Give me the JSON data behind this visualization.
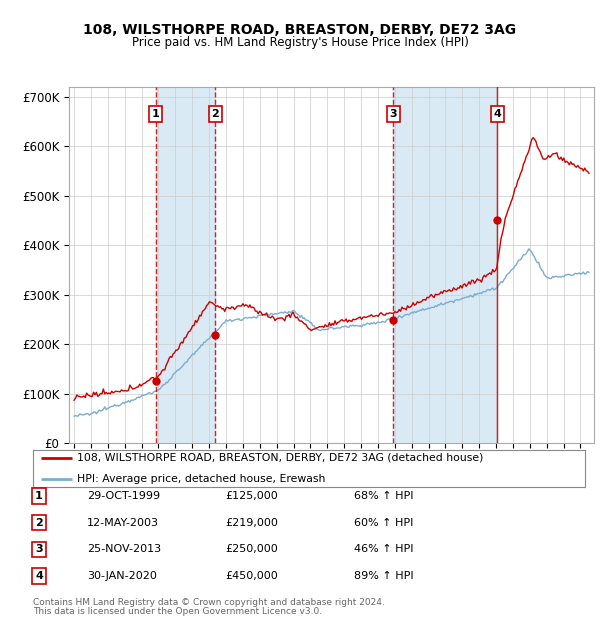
{
  "title1": "108, WILSTHORPE ROAD, BREASTON, DERBY, DE72 3AG",
  "title2": "Price paid vs. HM Land Registry's House Price Index (HPI)",
  "ylim": [
    0,
    720000
  ],
  "yticks": [
    0,
    100000,
    200000,
    300000,
    400000,
    500000,
    600000,
    700000
  ],
  "ytick_labels": [
    "£0",
    "£100K",
    "£200K",
    "£300K",
    "£400K",
    "£500K",
    "£600K",
    "£700K"
  ],
  "sale_dates": [
    1999.83,
    2003.36,
    2013.9,
    2020.08
  ],
  "sale_prices": [
    125000,
    219000,
    250000,
    450000
  ],
  "sale_numbers": [
    "1",
    "2",
    "3",
    "4"
  ],
  "red_line_color": "#cc0000",
  "blue_line_color": "#7aadcf",
  "sale_dot_color": "#cc0000",
  "sale_vline_color": "#cc0000",
  "highlight_color": "#daeaf5",
  "legend_line1": "108, WILSTHORPE ROAD, BREASTON, DERBY, DE72 3AG (detached house)",
  "legend_line2": "HPI: Average price, detached house, Erewash",
  "table_rows": [
    [
      "1",
      "29-OCT-1999",
      "£125,000",
      "68% ↑ HPI"
    ],
    [
      "2",
      "12-MAY-2003",
      "£219,000",
      "60% ↑ HPI"
    ],
    [
      "3",
      "25-NOV-2013",
      "£250,000",
      "46% ↑ HPI"
    ],
    [
      "4",
      "30-JAN-2020",
      "£450,000",
      "89% ↑ HPI"
    ]
  ],
  "footnote1": "Contains HM Land Registry data © Crown copyright and database right 2024.",
  "footnote2": "This data is licensed under the Open Government Licence v3.0.",
  "xmin": 1994.7,
  "xmax": 2025.8
}
